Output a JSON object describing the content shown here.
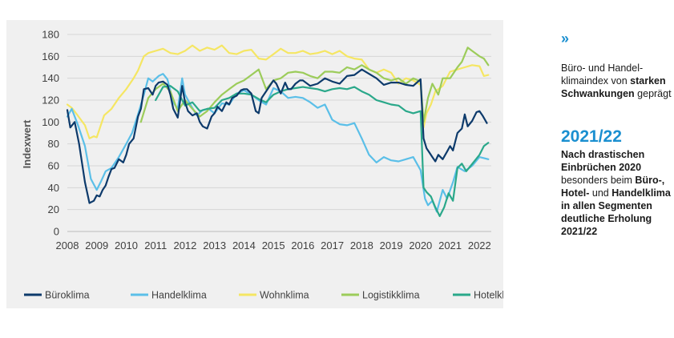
{
  "sidebar": {
    "chevron": "»",
    "block1": {
      "p1": "Büro- und Handel-klimaindex von ",
      "b1": "starken Schwankungen",
      "p2": " geprägt"
    },
    "heading": "2021/22",
    "block2": {
      "b1": "Nach drastischen Einbrüchen 2020",
      "p1": " besonders beim ",
      "b2": "Büro-, Hotel-",
      "p2": " und ",
      "b3": "Handelklima in allen Segmenten deutliche Erholung 2021/22"
    }
  },
  "colors": {
    "buero": "#0d3a6b",
    "handel": "#5bbfe8",
    "wohn": "#f5e663",
    "logistik": "#9ccc5a",
    "hotel": "#2aa88a"
  },
  "chart_data": {
    "type": "line",
    "title": "",
    "xlabel": "",
    "ylabel": "Indexwert",
    "xlim": [
      2008,
      2022.4
    ],
    "ylim": [
      0,
      180
    ],
    "xticks": [
      2008,
      2009,
      2010,
      2011,
      2012,
      2013,
      2014,
      2015,
      2016,
      2017,
      2018,
      2019,
      2020,
      2021,
      2022
    ],
    "yticks": [
      0,
      20,
      40,
      60,
      80,
      100,
      120,
      140,
      160,
      180
    ],
    "grid": "horizontal",
    "legend": "bottom",
    "series": [
      {
        "name": "Büroklima",
        "color_key": "buero",
        "x": [
          2008.0,
          2008.1,
          2008.25,
          2008.4,
          2008.6,
          2008.75,
          2008.9,
          2009.0,
          2009.1,
          2009.2,
          2009.3,
          2009.4,
          2009.5,
          2009.6,
          2009.75,
          2009.9,
          2010.0,
          2010.1,
          2010.25,
          2010.4,
          2010.5,
          2010.6,
          2010.75,
          2010.9,
          2011.0,
          2011.1,
          2011.25,
          2011.4,
          2011.5,
          2011.6,
          2011.75,
          2011.9,
          2012.0,
          2012.1,
          2012.25,
          2012.4,
          2012.5,
          2012.6,
          2012.75,
          2012.9,
          2013.0,
          2013.1,
          2013.25,
          2013.4,
          2013.5,
          2013.6,
          2013.75,
          2013.9,
          2014.0,
          2014.1,
          2014.25,
          2014.4,
          2014.5,
          2014.6,
          2014.75,
          2014.9,
          2015.0,
          2015.1,
          2015.25,
          2015.4,
          2015.5,
          2015.6,
          2015.75,
          2015.9,
          2016.0,
          2016.25,
          2016.5,
          2016.75,
          2017.0,
          2017.25,
          2017.5,
          2017.75,
          2018.0,
          2018.25,
          2018.5,
          2018.75,
          2019.0,
          2019.25,
          2019.5,
          2019.75,
          2020.0,
          2020.1,
          2020.2,
          2020.3,
          2020.4,
          2020.5,
          2020.6,
          2020.75,
          2020.9,
          2021.0,
          2021.1,
          2021.25,
          2021.4,
          2021.5,
          2021.6,
          2021.75,
          2021.9,
          2022.0,
          2022.1,
          2022.25
        ],
        "values": [
          111,
          95,
          100,
          80,
          45,
          26,
          28,
          33,
          32,
          38,
          42,
          50,
          57,
          58,
          66,
          63,
          70,
          80,
          85,
          105,
          112,
          130,
          131,
          125,
          133,
          136,
          137,
          134,
          125,
          112,
          104,
          133,
          118,
          110,
          106,
          108,
          100,
          96,
          94,
          105,
          108,
          114,
          110,
          118,
          116,
          122,
          124,
          129,
          130,
          130,
          126,
          110,
          108,
          122,
          128,
          134,
          138,
          135,
          126,
          136,
          130,
          130,
          135,
          138,
          138,
          133,
          135,
          140,
          137,
          135,
          142,
          143,
          148,
          144,
          140,
          134,
          136,
          136,
          134,
          133,
          139,
          85,
          76,
          72,
          68,
          64,
          70,
          66,
          73,
          78,
          74,
          90,
          94,
          107,
          96,
          101,
          109,
          110,
          106,
          99
        ]
      },
      {
        "name": "Handelklima",
        "color_key": "handel",
        "x": [
          2008.0,
          2008.15,
          2008.35,
          2008.6,
          2008.8,
          2009.0,
          2009.15,
          2009.3,
          2009.5,
          2009.75,
          2010.0,
          2010.2,
          2010.4,
          2010.6,
          2010.75,
          2010.9,
          2011.1,
          2011.25,
          2011.4,
          2011.6,
          2011.75,
          2011.9,
          2012.0,
          2012.2,
          2012.4,
          2012.6,
          2012.8,
          2013.0,
          2013.25,
          2013.5,
          2013.75,
          2014.0,
          2014.25,
          2014.5,
          2014.75,
          2015.0,
          2015.25,
          2015.5,
          2015.75,
          2016.0,
          2016.25,
          2016.5,
          2016.75,
          2017.0,
          2017.25,
          2017.5,
          2017.75,
          2018.0,
          2018.25,
          2018.5,
          2018.75,
          2019.0,
          2019.25,
          2019.5,
          2019.75,
          2020.0,
          2020.15,
          2020.25,
          2020.4,
          2020.55,
          2020.75,
          2020.9,
          2021.1,
          2021.25,
          2021.5,
          2021.75,
          2022.0,
          2022.15,
          2022.3
        ],
        "values": [
          105,
          112,
          98,
          78,
          48,
          38,
          46,
          55,
          58,
          68,
          80,
          90,
          107,
          125,
          140,
          137,
          142,
          144,
          139,
          118,
          112,
          140,
          125,
          115,
          106,
          111,
          112,
          108,
          117,
          116,
          126,
          129,
          125,
          120,
          116,
          131,
          128,
          122,
          123,
          122,
          118,
          113,
          116,
          102,
          98,
          97,
          99,
          85,
          70,
          63,
          68,
          65,
          64,
          66,
          68,
          56,
          30,
          24,
          28,
          18,
          38,
          30,
          45,
          59,
          55,
          60,
          68,
          67,
          66
        ]
      },
      {
        "name": "Wohnklima",
        "color_key": "wohn",
        "x": [
          2008.0,
          2008.15,
          2008.35,
          2008.6,
          2008.75,
          2008.9,
          2009.0,
          2009.25,
          2009.5,
          2009.75,
          2010.0,
          2010.25,
          2010.4,
          2010.6,
          2010.75,
          2011.0,
          2011.25,
          2011.5,
          2011.75,
          2012.0,
          2012.25,
          2012.5,
          2012.75,
          2013.0,
          2013.25,
          2013.5,
          2013.75,
          2014.0,
          2014.25,
          2014.5,
          2014.75,
          2015.0,
          2015.25,
          2015.5,
          2015.75,
          2016.0,
          2016.25,
          2016.5,
          2016.75,
          2017.0,
          2017.25,
          2017.5,
          2017.75,
          2018.0,
          2018.25,
          2018.5,
          2018.75,
          2019.0,
          2019.25,
          2019.5,
          2019.75,
          2020.0,
          2020.1,
          2020.2,
          2020.35,
          2020.5,
          2020.75,
          2021.0,
          2021.25,
          2021.5,
          2021.75,
          2022.0,
          2022.15,
          2022.3
        ],
        "values": [
          116,
          113,
          106,
          97,
          85,
          87,
          86,
          106,
          112,
          122,
          130,
          140,
          147,
          160,
          163,
          165,
          167,
          163,
          162,
          165,
          170,
          165,
          168,
          166,
          170,
          163,
          162,
          165,
          166,
          158,
          157,
          162,
          167,
          163,
          163,
          165,
          162,
          163,
          165,
          162,
          165,
          160,
          158,
          157,
          148,
          145,
          148,
          145,
          135,
          140,
          138,
          134,
          95,
          108,
          116,
          128,
          133,
          146,
          148,
          150,
          152,
          151,
          142,
          143
        ]
      },
      {
        "name": "Logistikklima",
        "color_key": "logistik",
        "x": [
          2010.5,
          2010.75,
          2011.0,
          2011.25,
          2011.5,
          2011.75,
          2012.0,
          2012.25,
          2012.5,
          2012.75,
          2013.0,
          2013.25,
          2013.5,
          2013.75,
          2014.0,
          2014.25,
          2014.5,
          2014.75,
          2015.0,
          2015.25,
          2015.5,
          2015.75,
          2016.0,
          2016.25,
          2016.5,
          2016.75,
          2017.0,
          2017.25,
          2017.5,
          2017.75,
          2018.0,
          2018.25,
          2018.5,
          2018.75,
          2019.0,
          2019.25,
          2019.5,
          2019.75,
          2020.0,
          2020.1,
          2020.25,
          2020.4,
          2020.6,
          2020.75,
          2021.0,
          2021.25,
          2021.4,
          2021.6,
          2021.75,
          2022.0,
          2022.15,
          2022.3
        ],
        "values": [
          100,
          122,
          130,
          135,
          128,
          110,
          120,
          112,
          105,
          110,
          118,
          125,
          130,
          135,
          138,
          143,
          148,
          130,
          138,
          140,
          145,
          146,
          145,
          142,
          140,
          146,
          146,
          145,
          150,
          148,
          152,
          148,
          145,
          140,
          138,
          140,
          135,
          140,
          137,
          100,
          122,
          135,
          125,
          140,
          140,
          150,
          155,
          168,
          165,
          160,
          158,
          152
        ]
      },
      {
        "name": "Hotelklima",
        "color_key": "hotel",
        "x": [
          2011.0,
          2011.25,
          2011.5,
          2011.75,
          2012.0,
          2012.25,
          2012.5,
          2012.75,
          2013.0,
          2013.25,
          2013.5,
          2013.75,
          2014.0,
          2014.25,
          2014.5,
          2014.75,
          2015.0,
          2015.25,
          2015.5,
          2015.75,
          2016.0,
          2016.25,
          2016.5,
          2016.75,
          2017.0,
          2017.25,
          2017.5,
          2017.75,
          2018.0,
          2018.25,
          2018.5,
          2018.75,
          2019.0,
          2019.25,
          2019.5,
          2019.75,
          2020.0,
          2020.1,
          2020.2,
          2020.35,
          2020.5,
          2020.65,
          2020.8,
          2020.95,
          2021.1,
          2021.25,
          2021.4,
          2021.55,
          2021.7,
          2021.85,
          2022.0,
          2022.15,
          2022.3
        ],
        "values": [
          120,
          132,
          133,
          128,
          115,
          118,
          110,
          112,
          113,
          120,
          122,
          126,
          126,
          125,
          121,
          118,
          125,
          128,
          130,
          131,
          132,
          131,
          130,
          128,
          130,
          131,
          130,
          132,
          128,
          125,
          120,
          118,
          116,
          115,
          110,
          108,
          110,
          40,
          36,
          32,
          22,
          14,
          22,
          35,
          28,
          58,
          62,
          55,
          60,
          65,
          70,
          78,
          81
        ]
      }
    ]
  },
  "legend_items": [
    {
      "name": "Büroklima",
      "color_key": "buero"
    },
    {
      "name": "Handelklima",
      "color_key": "handel"
    },
    {
      "name": "Wohnklima",
      "color_key": "wohn"
    },
    {
      "name": "Logistikklima",
      "color_key": "logistik"
    },
    {
      "name": "Hotelklima",
      "color_key": "hotel"
    }
  ]
}
